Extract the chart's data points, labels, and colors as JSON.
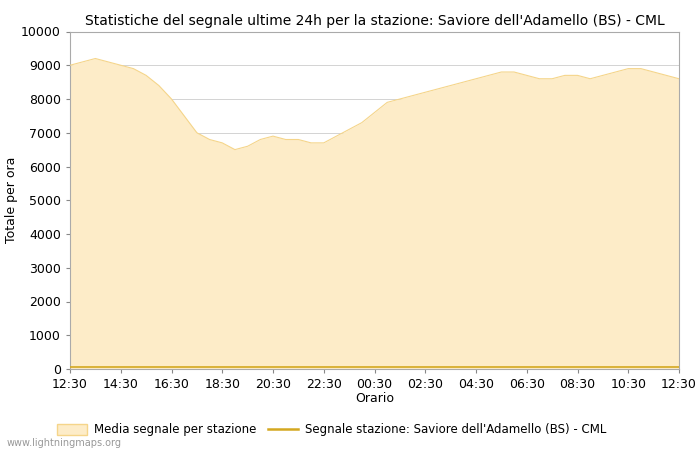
{
  "title": "Statistiche del segnale ultime 24h per la stazione: Saviore dell'Adamello (BS) - CML",
  "xlabel": "Orario",
  "ylabel": "Totale per ora",
  "ylim": [
    0,
    10000
  ],
  "yticks": [
    0,
    1000,
    2000,
    3000,
    4000,
    5000,
    6000,
    7000,
    8000,
    9000,
    10000
  ],
  "xtick_labels": [
    "12:30",
    "14:30",
    "16:30",
    "18:30",
    "20:30",
    "22:30",
    "00:30",
    "02:30",
    "04:30",
    "06:30",
    "08:30",
    "10:30",
    "12:30"
  ],
  "fill_color": "#FDECC8",
  "fill_edge_color": "#F5D58A",
  "line_color": "#D4A820",
  "background_color": "#FFFFFF",
  "grid_color": "#CCCCCC",
  "title_fontsize": 10,
  "axis_fontsize": 9,
  "tick_fontsize": 9,
  "watermark": "www.lightningmaps.org",
  "legend_fill_label": "Media segnale per stazione",
  "legend_line_label": "Segnale stazione: Saviore dell'Adamello (BS) - CML",
  "x_values": [
    0,
    1,
    2,
    3,
    4,
    5,
    6,
    7,
    8,
    9,
    10,
    11,
    12,
    13,
    14,
    15,
    16,
    17,
    18,
    19,
    20,
    21,
    22,
    23,
    24,
    25,
    26,
    27,
    28,
    29,
    30,
    31,
    32,
    33,
    34,
    35,
    36,
    37,
    38,
    39,
    40,
    41,
    42,
    43,
    44,
    45,
    46,
    47,
    48
  ],
  "fill_y": [
    9000,
    9100,
    9200,
    9100,
    9000,
    8900,
    8700,
    8400,
    8000,
    7500,
    7000,
    6800,
    6700,
    6500,
    6600,
    6800,
    6900,
    6800,
    6800,
    6700,
    6700,
    6900,
    7100,
    7300,
    7600,
    7900,
    8000,
    8100,
    8200,
    8300,
    8400,
    8500,
    8600,
    8700,
    8800,
    8800,
    8700,
    8600,
    8600,
    8700,
    8700,
    8600,
    8700,
    8800,
    8900,
    8900,
    8800,
    8700,
    8600
  ],
  "line_y": [
    50,
    50,
    50,
    50,
    50,
    50,
    50,
    50,
    50,
    50,
    50,
    50,
    50,
    50,
    50,
    50,
    50,
    50,
    50,
    50,
    50,
    50,
    50,
    50,
    50,
    50,
    50,
    50,
    50,
    50,
    50,
    50,
    50,
    50,
    50,
    50,
    50,
    50,
    50,
    50,
    50,
    50,
    50,
    50,
    50,
    50,
    50,
    50,
    50
  ]
}
